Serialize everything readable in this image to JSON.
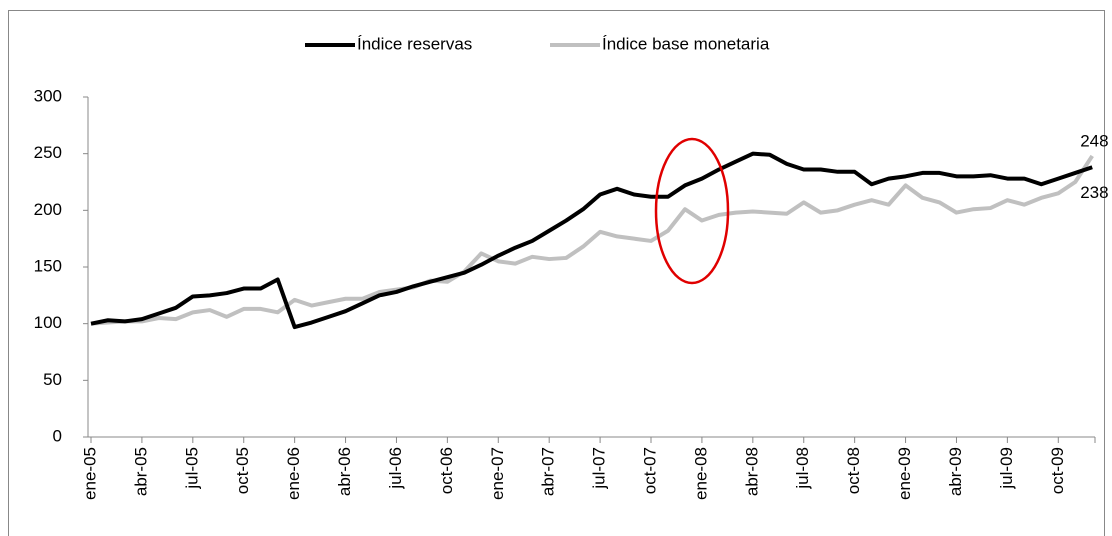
{
  "chart_data": {
    "type": "line",
    "categories": [
      "ene-05",
      null,
      null,
      "abr-05",
      null,
      null,
      "jul-05",
      null,
      null,
      "oct-05",
      null,
      null,
      "ene-06",
      null,
      null,
      "abr-06",
      null,
      null,
      "jul-06",
      null,
      null,
      "oct-06",
      null,
      null,
      "ene-07",
      null,
      null,
      "abr-07",
      null,
      null,
      "jul-07",
      null,
      null,
      "oct-07",
      null,
      null,
      "ene-08",
      null,
      null,
      "abr-08",
      null,
      null,
      "jul-08",
      null,
      null,
      "oct-08",
      null,
      null,
      "ene-09",
      null,
      null,
      "abr-09",
      null,
      null,
      "jul-09",
      null,
      null,
      "oct-09",
      null,
      null
    ],
    "series": [
      {
        "name": "Índice reservas",
        "color": "#000000",
        "values": [
          100,
          103,
          102,
          104,
          109,
          114,
          124,
          125,
          127,
          131,
          131,
          139,
          97,
          101,
          106,
          111,
          118,
          125,
          128,
          133,
          137,
          141,
          145,
          152,
          160,
          167,
          173,
          182,
          191,
          201,
          214,
          219,
          214,
          212,
          212,
          222,
          228,
          236,
          243,
          250,
          249,
          241,
          236,
          236,
          234,
          234,
          223,
          228,
          230,
          233,
          233,
          230,
          230,
          231,
          228,
          228,
          223,
          228,
          233,
          238
        ],
        "value_labels": [
          null,
          null,
          null,
          null,
          null,
          null,
          null,
          null,
          null,
          null,
          null,
          null,
          null,
          null,
          null,
          null,
          null,
          null,
          null,
          null,
          null,
          null,
          null,
          null,
          null,
          null,
          null,
          null,
          null,
          null,
          null,
          null,
          null,
          null,
          null,
          null,
          null,
          null,
          null,
          null,
          null,
          null,
          null,
          null,
          null,
          null,
          null,
          null,
          null,
          null,
          null,
          null,
          null,
          null,
          null,
          null,
          null,
          null,
          null,
          "238"
        ]
      },
      {
        "name": "Índice base monetaria",
        "color": "#c0c0c0",
        "values": [
          100,
          101,
          102,
          102,
          105,
          104,
          110,
          112,
          106,
          113,
          113,
          110,
          121,
          116,
          119,
          122,
          122,
          128,
          130,
          132,
          138,
          137,
          146,
          162,
          155,
          153,
          159,
          157,
          158,
          168,
          181,
          177,
          175,
          173,
          182,
          201,
          191,
          196,
          198,
          199,
          198,
          197,
          207,
          198,
          200,
          205,
          209,
          205,
          222,
          211,
          207,
          198,
          201,
          202,
          209,
          205,
          211,
          215,
          225,
          248
        ],
        "value_labels": [
          null,
          null,
          null,
          null,
          null,
          null,
          null,
          null,
          null,
          null,
          null,
          null,
          null,
          null,
          null,
          null,
          null,
          null,
          null,
          null,
          null,
          null,
          null,
          null,
          null,
          null,
          null,
          null,
          null,
          null,
          null,
          null,
          null,
          null,
          null,
          null,
          null,
          null,
          null,
          null,
          null,
          null,
          null,
          null,
          null,
          null,
          null,
          null,
          null,
          null,
          null,
          null,
          null,
          null,
          null,
          null,
          null,
          null,
          null,
          "248"
        ]
      }
    ],
    "ylim": [
      0,
      300
    ],
    "yticks": [
      0,
      50,
      100,
      150,
      200,
      250,
      300
    ],
    "legend": "top"
  }
}
